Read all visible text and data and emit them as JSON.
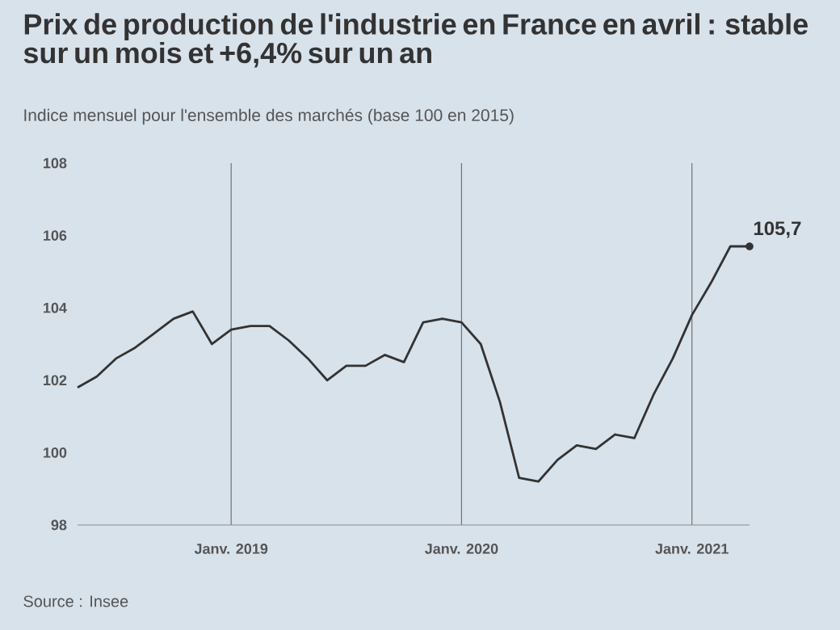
{
  "chart_data": {
    "type": "line",
    "title": "Prix de production de l'industrie en France en avril : stable sur un mois et +6,4% sur un an",
    "subtitle": "Indice mensuel pour l'ensemble des marchés (base 100 en 2015)",
    "x": [
      "2018-05",
      "2018-06",
      "2018-07",
      "2018-08",
      "2018-09",
      "2018-10",
      "2018-11",
      "2018-12",
      "2019-01",
      "2019-02",
      "2019-03",
      "2019-04",
      "2019-05",
      "2019-06",
      "2019-07",
      "2019-08",
      "2019-09",
      "2019-10",
      "2019-11",
      "2019-12",
      "2020-01",
      "2020-02",
      "2020-03",
      "2020-04",
      "2020-05",
      "2020-06",
      "2020-07",
      "2020-08",
      "2020-09",
      "2020-10",
      "2020-11",
      "2020-12",
      "2021-01",
      "2021-02",
      "2021-03",
      "2021-04"
    ],
    "series": [
      {
        "color": "#333333",
        "values": [
          101.8,
          102.1,
          102.6,
          102.9,
          103.3,
          103.7,
          103.9,
          103.0,
          103.4,
          103.5,
          103.5,
          103.1,
          102.6,
          102.0,
          102.4,
          102.4,
          102.7,
          102.5,
          103.6,
          103.7,
          103.6,
          103.0,
          101.4,
          99.3,
          99.2,
          99.8,
          100.2,
          100.1,
          100.5,
          100.4,
          101.6,
          102.6,
          103.8,
          104.7,
          105.7,
          105.7
        ]
      }
    ],
    "xlim": [
      "2018-05",
      "2021-04"
    ],
    "ylim": [
      98,
      108
    ],
    "yticks": [
      98,
      100,
      102,
      104,
      106,
      108
    ],
    "xticks": [
      {
        "value": "2019-01",
        "label": "Janv. 2019"
      },
      {
        "value": "2020-01",
        "label": "Janv. 2020"
      },
      {
        "value": "2021-01",
        "label": "Janv. 2021"
      }
    ],
    "grid": "x",
    "marker": "none",
    "line_style": "solid",
    "annotations": [
      {
        "text": "105,7",
        "x": "2021-04",
        "y": 105.7
      },
      "Source : Insee"
    ]
  }
}
